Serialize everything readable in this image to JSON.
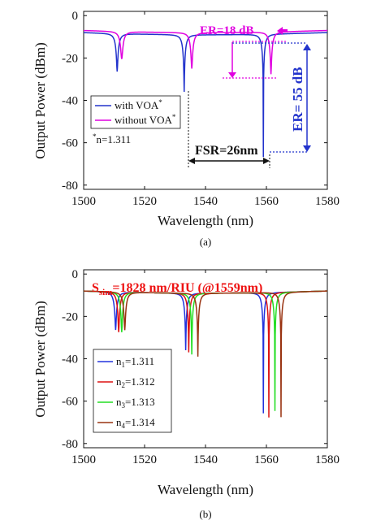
{
  "chart_data": [
    {
      "type": "line",
      "panel_label": "(a)",
      "xlabel": "Wavelength (nm)",
      "ylabel": "Output Power (dBm)",
      "xlim": [
        1500,
        1580
      ],
      "ylim": [
        -82,
        2
      ],
      "xticks": [
        "1500",
        "1520",
        "1540",
        "1560",
        "1580"
      ],
      "yticks": [
        "0",
        "-20",
        "-40",
        "-60",
        "-80"
      ],
      "grid": false,
      "legend_position": "bottom-left",
      "note": "*n=1.311",
      "series": [
        {
          "name": "with VOA*",
          "color": "#2233cc",
          "dips": [
            {
              "x": 1511.0,
              "y": -26
            },
            {
              "x": 1533.0,
              "y": -35
            },
            {
              "x": 1559.0,
              "y": -66
            }
          ],
          "baseline": -8
        },
        {
          "name": "without VOA*",
          "color": "#e000e0",
          "dips": [
            {
              "x": 1512.5,
              "y": -20
            },
            {
              "x": 1535.5,
              "y": -24
            },
            {
              "x": 1561.5,
              "y": -27
            }
          ],
          "baseline": -7
        }
      ],
      "annotations": {
        "er_small": "ER=18 dB",
        "er_large": "ER= 55 dB",
        "fsr": "FSR=26nm"
      }
    },
    {
      "type": "line",
      "panel_label": "(b)",
      "title": "Ssim=1828 nm/RIU (@1559nm)",
      "xlabel": "Wavelength (nm)",
      "ylabel": "Output Power (dBm)",
      "xlim": [
        1500,
        1580
      ],
      "ylim": [
        -82,
        2
      ],
      "xticks": [
        "1500",
        "1520",
        "1540",
        "1560",
        "1580"
      ],
      "yticks": [
        "0",
        "-20",
        "-40",
        "-60",
        "-80"
      ],
      "grid": false,
      "legend_position": "bottom-left",
      "series": [
        {
          "name": "n1=1.311",
          "color": "#2233dd",
          "dips": [
            {
              "x": 1510.5,
              "y": -26
            },
            {
              "x": 1533.5,
              "y": -35
            },
            {
              "x": 1559.0,
              "y": -65
            }
          ],
          "baseline": -8
        },
        {
          "name": "n2=1.312",
          "color": "#dd1111",
          "dips": [
            {
              "x": 1511.5,
              "y": -27
            },
            {
              "x": 1534.5,
              "y": -36
            },
            {
              "x": 1560.8,
              "y": -67
            }
          ],
          "baseline": -8
        },
        {
          "name": "n3=1.313",
          "color": "#22dd22",
          "dips": [
            {
              "x": 1512.5,
              "y": -27
            },
            {
              "x": 1535.5,
              "y": -37
            },
            {
              "x": 1562.8,
              "y": -64
            }
          ],
          "baseline": -8
        },
        {
          "name": "n4=1.314",
          "color": "#993311",
          "dips": [
            {
              "x": 1513.5,
              "y": -26
            },
            {
              "x": 1537.5,
              "y": -38
            },
            {
              "x": 1564.8,
              "y": -67
            }
          ],
          "baseline": -8
        }
      ]
    }
  ],
  "legend_b": [
    {
      "sym": "n",
      "sub": "1",
      "rest": "=1.311"
    },
    {
      "sym": "n",
      "sub": "2",
      "rest": "=1.312"
    },
    {
      "sym": "n",
      "sub": "3",
      "rest": "=1.313"
    },
    {
      "sym": "n",
      "sub": "4",
      "rest": "=1.314"
    }
  ],
  "title_b": {
    "s": "S",
    "sub": "sim",
    "rest": "=1828 nm/RIU (@1559nm)"
  },
  "legend_a": [
    {
      "main": "with VOA",
      "sup": "*"
    },
    {
      "main": "without VOA",
      "sup": "*"
    }
  ],
  "note_a": {
    "sup": "*",
    "main": "n=1.311"
  },
  "colors": {
    "er_blue": "#2233cc",
    "er_magenta": "#e000e0",
    "title_red": "#ee1111"
  }
}
